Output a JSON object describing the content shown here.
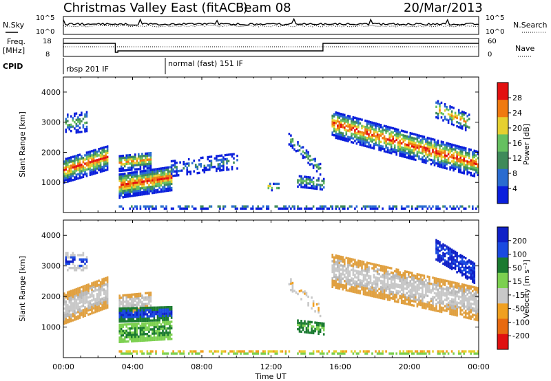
{
  "header": {
    "station": "Christmas Valley East (fitACF)",
    "beam": "Beam 08",
    "date": "20/Mar/2013"
  },
  "side_labels": {
    "nsky": "N.Sky",
    "nsearch": "N.Search",
    "freq_line1": "Freq.",
    "freq_line2": "[MHz]",
    "nave": "Nave",
    "cpid": "CPID",
    "ns_top_left": "10^5",
    "ns_bot_left": "10^0",
    "ns_top_right": "10^5",
    "ns_bot_right": "10^0",
    "freq_top": "18",
    "freq_bot": "8",
    "nave_top": "60",
    "nave_bot": "0"
  },
  "cpid_labels": [
    {
      "text": "rbsp 201 IF",
      "start_hour": 0
    },
    {
      "text": "normal (fast) 151 IF",
      "start_hour": 6
    }
  ],
  "chart_data": [
    {
      "type": "heatmap",
      "panel": "power",
      "ylabel": "Slant Range [km]",
      "yticks": [
        "1000",
        "2000",
        "3000",
        "4000"
      ],
      "ylim": [
        0,
        4500
      ],
      "colorbar_label": "Power [dB]",
      "colorbar_ticks": [
        "4",
        "8",
        "12",
        "16",
        "20",
        "24",
        "28"
      ],
      "colors": [
        "#0a1edc",
        "#2a6cd0",
        "#3f8a5a",
        "#66c060",
        "#e6d030",
        "#f07a10",
        "#e31010"
      ]
    },
    {
      "type": "heatmap",
      "panel": "velocity",
      "ylabel": "Slant Range [km]",
      "yticks": [
        "1000",
        "2000",
        "3000",
        "4000"
      ],
      "ylim": [
        0,
        4500
      ],
      "colorbar_label": "Velocity [m s⁻¹]",
      "colorbar_ticks": [
        "200",
        "100",
        "50",
        "15",
        "-15",
        "-50",
        "-100",
        "-200"
      ],
      "colors": [
        "#0f20c8",
        "#1a4ae0",
        "#1a7a30",
        "#7cd050",
        "#c8c8c8",
        "#f0a020",
        "#e86a10",
        "#e01010"
      ]
    }
  ],
  "xaxis": {
    "label": "Time UT",
    "ticks": [
      "00:00",
      "04:00",
      "08:00",
      "12:00",
      "16:00",
      "20:00",
      "00:00"
    ]
  }
}
